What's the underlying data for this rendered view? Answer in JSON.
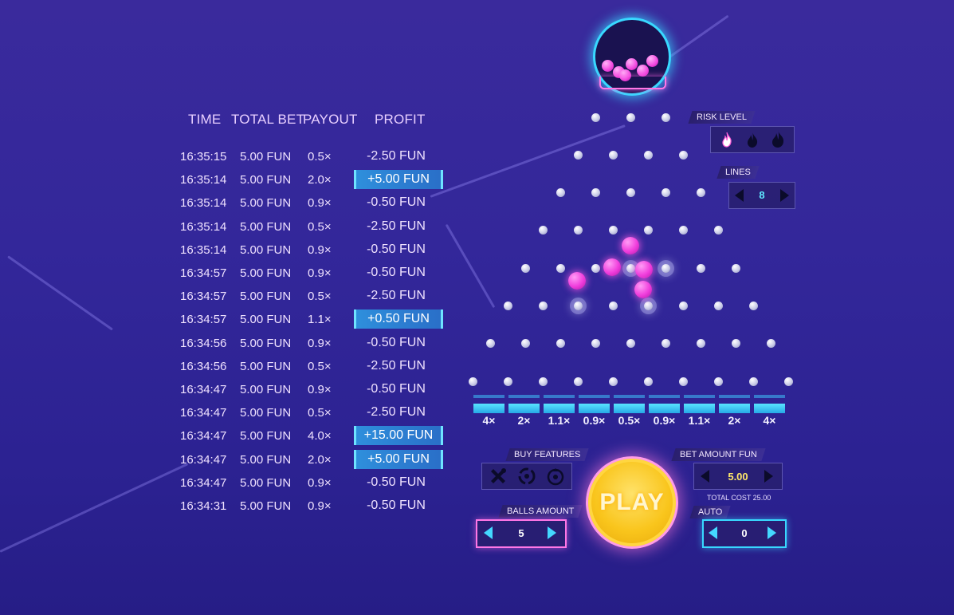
{
  "history": {
    "headers": {
      "time": "TIME",
      "total_bet": "TOTAL BET",
      "payout": "PAYOUT",
      "profit": "PROFIT"
    },
    "rows": [
      {
        "time": "16:35:15",
        "bet": "5.00 FUN",
        "payout": "0.5×",
        "profit": "-2.50 FUN",
        "win": false
      },
      {
        "time": "16:35:14",
        "bet": "5.00 FUN",
        "payout": "2.0×",
        "profit": "+5.00 FUN",
        "win": true
      },
      {
        "time": "16:35:14",
        "bet": "5.00 FUN",
        "payout": "0.9×",
        "profit": "-0.50 FUN",
        "win": false
      },
      {
        "time": "16:35:14",
        "bet": "5.00 FUN",
        "payout": "0.5×",
        "profit": "-2.50 FUN",
        "win": false
      },
      {
        "time": "16:35:14",
        "bet": "5.00 FUN",
        "payout": "0.9×",
        "profit": "-0.50 FUN",
        "win": false
      },
      {
        "time": "16:34:57",
        "bet": "5.00 FUN",
        "payout": "0.9×",
        "profit": "-0.50 FUN",
        "win": false
      },
      {
        "time": "16:34:57",
        "bet": "5.00 FUN",
        "payout": "0.5×",
        "profit": "-2.50 FUN",
        "win": false
      },
      {
        "time": "16:34:57",
        "bet": "5.00 FUN",
        "payout": "1.1×",
        "profit": "+0.50 FUN",
        "win": true
      },
      {
        "time": "16:34:56",
        "bet": "5.00 FUN",
        "payout": "0.9×",
        "profit": "-0.50 FUN",
        "win": false
      },
      {
        "time": "16:34:56",
        "bet": "5.00 FUN",
        "payout": "0.5×",
        "profit": "-2.50 FUN",
        "win": false
      },
      {
        "time": "16:34:47",
        "bet": "5.00 FUN",
        "payout": "0.9×",
        "profit": "-0.50 FUN",
        "win": false
      },
      {
        "time": "16:34:47",
        "bet": "5.00 FUN",
        "payout": "0.5×",
        "profit": "-2.50 FUN",
        "win": false
      },
      {
        "time": "16:34:47",
        "bet": "5.00 FUN",
        "payout": "4.0×",
        "profit": "+15.00 FUN",
        "win": true
      },
      {
        "time": "16:34:47",
        "bet": "5.00 FUN",
        "payout": "2.0×",
        "profit": "+5.00 FUN",
        "win": true
      },
      {
        "time": "16:34:47",
        "bet": "5.00 FUN",
        "payout": "0.9×",
        "profit": "-0.50 FUN",
        "win": false
      },
      {
        "time": "16:34:31",
        "bet": "5.00 FUN",
        "payout": "0.9×",
        "profit": "-0.50 FUN",
        "win": false
      }
    ]
  },
  "board": {
    "multipliers": [
      "4×",
      "2×",
      "1.1×",
      "0.9×",
      "0.5×",
      "0.9×",
      "1.1×",
      "2×",
      "4×"
    ],
    "lines": "8"
  },
  "controls": {
    "risk_level_label": "RISK LEVEL",
    "lines_label": "LINES",
    "lines_value": "8",
    "buy_features_label": "BUY FEATURES",
    "balls_amount_label": "BALLS AMOUNT",
    "balls_amount_value": "5",
    "play_label": "PLAY",
    "bet_amount_label": "BET AMOUNT FUN",
    "bet_amount_value": "5.00",
    "total_cost": "TOTAL COST 25.00",
    "auto_label": "AUTO",
    "auto_value": "0"
  },
  "icons": {
    "risk": [
      "flame-low-icon",
      "flame-medium-icon",
      "flame-high-icon"
    ],
    "features": [
      "cross-bomb-icon",
      "swirl-icon",
      "radioactive-icon"
    ]
  },
  "colors": {
    "accent_cyan": "#38d8ff",
    "accent_pink": "#f03ddc",
    "play_yellow": "#f9c51c",
    "win_blue": "#2e8fdc"
  }
}
